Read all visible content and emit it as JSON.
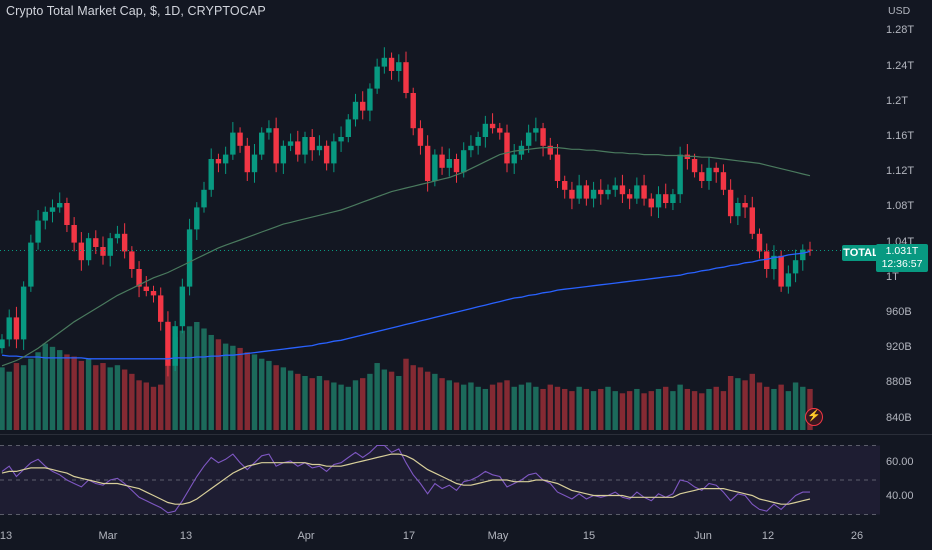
{
  "header": {
    "title": "Crypto Total Market Cap, $, 1D, CRYPTOCAP",
    "currency": "USD"
  },
  "badges": {
    "symbol": "TOTAL",
    "price": "1.031T",
    "countdown": "12:36:57"
  },
  "icons": {
    "alert": "lightning-icon"
  },
  "colors": {
    "background": "#131722",
    "up": "#089981",
    "down": "#f23645",
    "ma_long": "#2962ff",
    "ma_short": "#4a7a5e",
    "rsi": "#7e57c2",
    "rsi_ma": "#d8cf9a"
  },
  "chart_data": {
    "type": "candlestick",
    "title": "Crypto Total Market Cap, $, 1D, CRYPTOCAP",
    "ylabel": "USD",
    "y_ticks": [
      "1.28T",
      "1.24T",
      "1.2T",
      "1.16T",
      "1.12T",
      "1.08T",
      "1.04T",
      "1T",
      "960B",
      "920B",
      "880B",
      "840B"
    ],
    "ylim": [
      835,
      1285
    ],
    "x_ticks": [
      "13",
      "Mar",
      "13",
      "Apr",
      "17",
      "May",
      "15",
      "Jun",
      "12",
      "26"
    ],
    "close": [
      930,
      955,
      930,
      990,
      1040,
      1065,
      1075,
      1080,
      1085,
      1060,
      1040,
      1020,
      1045,
      1035,
      1025,
      1045,
      1050,
      1030,
      1010,
      990,
      985,
      980,
      950,
      900,
      945,
      990,
      1055,
      1080,
      1100,
      1135,
      1130,
      1140,
      1165,
      1150,
      1120,
      1140,
      1165,
      1170,
      1130,
      1150,
      1155,
      1140,
      1160,
      1145,
      1150,
      1130,
      1155,
      1160,
      1180,
      1200,
      1190,
      1215,
      1240,
      1250,
      1235,
      1245,
      1210,
      1170,
      1150,
      1110,
      1140,
      1125,
      1135,
      1120,
      1145,
      1150,
      1160,
      1175,
      1170,
      1165,
      1130,
      1140,
      1150,
      1165,
      1170,
      1150,
      1140,
      1110,
      1100,
      1090,
      1105,
      1090,
      1100,
      1095,
      1100,
      1105,
      1095,
      1090,
      1105,
      1090,
      1080,
      1095,
      1085,
      1095,
      1140,
      1135,
      1120,
      1110,
      1125,
      1120,
      1100,
      1070,
      1085,
      1080,
      1050,
      1030,
      1010,
      1025,
      990,
      1005,
      1020,
      1032,
      1031
    ],
    "last_close": "1.031T",
    "volume_scale": "relative",
    "volume": [
      58,
      54,
      62,
      60,
      66,
      72,
      80,
      77,
      74,
      70,
      68,
      64,
      66,
      60,
      62,
      58,
      60,
      56,
      52,
      46,
      44,
      40,
      42,
      60,
      86,
      92,
      96,
      100,
      94,
      88,
      84,
      80,
      78,
      76,
      72,
      70,
      66,
      64,
      60,
      58,
      55,
      52,
      50,
      48,
      50,
      46,
      44,
      42,
      40,
      46,
      48,
      52,
      62,
      56,
      54,
      50,
      66,
      60,
      58,
      54,
      52,
      48,
      46,
      44,
      42,
      44,
      40,
      38,
      42,
      44,
      46,
      40,
      42,
      44,
      40,
      38,
      42,
      40,
      38,
      36,
      40,
      38,
      36,
      38,
      40,
      36,
      34,
      36,
      38,
      34,
      36,
      38,
      40,
      36,
      42,
      38,
      36,
      34,
      38,
      40,
      36,
      50,
      48,
      46,
      52,
      44,
      40,
      38,
      42,
      36,
      44,
      40,
      38
    ],
    "ma_short": [
      900,
      903,
      906,
      910,
      915,
      920,
      926,
      932,
      938,
      944,
      950,
      955,
      960,
      965,
      970,
      975,
      980,
      984,
      988,
      992,
      996,
      1000,
      1003,
      1006,
      1010,
      1014,
      1018,
      1022,
      1026,
      1030,
      1034,
      1037,
      1040,
      1043,
      1046,
      1049,
      1052,
      1055,
      1058,
      1061,
      1063,
      1065,
      1067,
      1069,
      1071,
      1073,
      1075,
      1077,
      1080,
      1083,
      1086,
      1089,
      1092,
      1095,
      1098,
      1100,
      1102,
      1104,
      1106,
      1108,
      1110,
      1112,
      1114,
      1117,
      1120,
      1124,
      1128,
      1132,
      1136,
      1140,
      1142,
      1144,
      1145,
      1146,
      1147,
      1148,
      1148,
      1148,
      1147,
      1146,
      1146,
      1145,
      1145,
      1144,
      1143,
      1142,
      1142,
      1141,
      1141,
      1140,
      1140,
      1140,
      1139,
      1139,
      1139,
      1138,
      1138,
      1137,
      1137,
      1136,
      1135,
      1134,
      1133,
      1132,
      1131,
      1130,
      1128,
      1126,
      1124,
      1122,
      1120,
      1118,
      1116
    ],
    "ma_long": [
      912,
      911,
      911,
      910,
      910,
      910,
      909,
      909,
      909,
      909,
      909,
      909,
      908,
      908,
      908,
      908,
      908,
      908,
      908,
      908,
      908,
      908,
      908,
      908,
      909,
      909,
      909,
      910,
      910,
      911,
      911,
      912,
      912,
      913,
      914,
      915,
      916,
      917,
      918,
      919,
      920,
      921,
      922,
      923,
      925,
      926,
      928,
      929,
      931,
      933,
      935,
      937,
      939,
      941,
      943,
      945,
      947,
      949,
      951,
      953,
      955,
      957,
      959,
      961,
      963,
      965,
      967,
      969,
      971,
      973,
      975,
      977,
      978,
      980,
      981,
      983,
      984,
      986,
      987,
      988,
      989,
      990,
      991,
      992,
      993,
      994,
      995,
      996,
      997,
      998,
      999,
      1000,
      1001,
      1002,
      1003,
      1005,
      1006,
      1008,
      1009,
      1011,
      1012,
      1014,
      1015,
      1017,
      1018,
      1020,
      1021,
      1023,
      1024,
      1026,
      1027,
      1028,
      1030
    ],
    "rsi_panel": {
      "y_ticks": [
        "60.00",
        "40.00"
      ],
      "ylim": [
        28,
        72
      ],
      "upper_band": 70,
      "middle_band": 50,
      "lower_band": 30,
      "rsi": [
        55,
        58,
        52,
        56,
        60,
        62,
        58,
        55,
        53,
        50,
        48,
        46,
        50,
        48,
        47,
        50,
        51,
        48,
        44,
        40,
        38,
        36,
        34,
        31,
        32,
        38,
        45,
        52,
        58,
        63,
        60,
        62,
        65,
        60,
        56,
        60,
        64,
        65,
        58,
        60,
        61,
        58,
        60,
        57,
        58,
        55,
        59,
        60,
        63,
        66,
        63,
        66,
        70,
        70,
        66,
        68,
        60,
        53,
        48,
        42,
        48,
        45,
        47,
        44,
        49,
        50,
        52,
        55,
        53,
        52,
        46,
        48,
        50,
        53,
        54,
        50,
        48,
        43,
        41,
        39,
        42,
        39,
        41,
        40,
        41,
        43,
        40,
        39,
        43,
        40,
        38,
        42,
        40,
        42,
        50,
        49,
        46,
        44,
        48,
        47,
        43,
        38,
        42,
        41,
        36,
        33,
        32,
        36,
        33,
        37,
        41,
        43,
        43
      ],
      "rsi_ma": [
        54,
        55,
        55,
        56,
        57,
        57,
        57,
        56,
        55,
        54,
        52,
        51,
        50,
        49,
        48,
        48,
        48,
        47,
        46,
        45,
        43,
        41,
        39,
        37,
        36,
        36,
        37,
        39,
        42,
        45,
        48,
        51,
        54,
        56,
        58,
        59,
        60,
        60,
        60,
        60,
        60,
        60,
        60,
        59,
        59,
        58,
        58,
        58,
        59,
        60,
        61,
        62,
        63,
        64,
        65,
        65,
        64,
        62,
        59,
        56,
        54,
        52,
        50,
        48,
        47,
        47,
        48,
        49,
        50,
        50,
        50,
        49,
        49,
        49,
        50,
        50,
        49,
        48,
        46,
        44,
        43,
        42,
        41,
        41,
        41,
        41,
        41,
        40,
        40,
        40,
        40,
        40,
        40,
        40,
        42,
        43,
        44,
        45,
        45,
        45,
        45,
        44,
        43,
        42,
        41,
        39,
        38,
        37,
        36,
        36,
        37,
        38,
        39
      ]
    }
  }
}
